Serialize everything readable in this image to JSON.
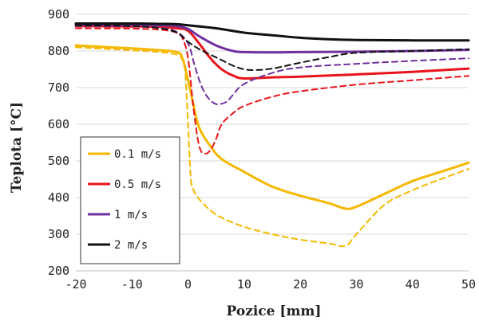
{
  "chart_data": {
    "type": "line",
    "title": "",
    "xlabel": "Pozice [mm]",
    "ylabel": "Teplota [°C]",
    "xlim": [
      -20,
      50
    ],
    "ylim": [
      200,
      900
    ],
    "xticks": [
      -20,
      -10,
      0,
      10,
      20,
      30,
      40,
      50
    ],
    "yticks": [
      200,
      300,
      400,
      500,
      600,
      700,
      800,
      900
    ],
    "xtick_labels": [
      "-20",
      "-10",
      "0",
      "10",
      "20",
      "30",
      "40",
      "50"
    ],
    "ytick_labels": [
      "200",
      "300",
      "400",
      "500",
      "600",
      "700",
      "800",
      "900"
    ],
    "grid": "horizontal",
    "legend_position": "lower-left",
    "legend": [
      "0.1 m/s",
      "0.5 m/s",
      "1 m/s",
      "2 m/s"
    ],
    "series": [
      {
        "name": "0.1 m/s",
        "color": "#f5b800",
        "style": "solid",
        "x": [
          -20,
          -10,
          -5,
          -2,
          -1,
          0,
          1,
          2,
          4,
          6,
          10,
          15,
          20,
          25,
          28,
          30,
          35,
          40,
          45,
          50
        ],
        "y": [
          815,
          807,
          802,
          797,
          780,
          720,
          650,
          590,
          540,
          505,
          470,
          430,
          405,
          385,
          370,
          375,
          410,
          445,
          470,
          495
        ]
      },
      {
        "name": "0.1 m/s",
        "color": "#f5b800",
        "style": "dashed",
        "x": [
          -20,
          -10,
          -5,
          -2,
          -1,
          -0.5,
          0,
          0.5,
          1,
          2,
          4,
          6,
          10,
          15,
          20,
          25,
          28,
          30,
          35,
          40,
          45,
          50
        ],
        "y": [
          810,
          802,
          797,
          790,
          775,
          740,
          600,
          450,
          420,
          395,
          365,
          345,
          320,
          300,
          285,
          275,
          268,
          300,
          380,
          420,
          450,
          478
        ]
      },
      {
        "name": "0.5 m/s",
        "color": "#e8141a",
        "style": "solid",
        "x": [
          -20,
          -10,
          -5,
          -2,
          0,
          2,
          4,
          6,
          8,
          10,
          15,
          20,
          30,
          40,
          50
        ],
        "y": [
          868,
          867,
          866,
          862,
          855,
          820,
          780,
          750,
          733,
          725,
          728,
          730,
          736,
          743,
          752
        ]
      },
      {
        "name": "0.5 m/s",
        "color": "#e8141a",
        "style": "dashed",
        "x": [
          -20,
          -10,
          -5,
          -2,
          -1,
          0,
          1,
          2,
          3,
          4,
          5,
          6,
          8,
          10,
          15,
          20,
          30,
          40,
          50
        ],
        "y": [
          862,
          861,
          858,
          850,
          835,
          780,
          640,
          540,
          520,
          530,
          560,
          600,
          630,
          650,
          675,
          690,
          708,
          720,
          732
        ]
      },
      {
        "name": "1 m/s",
        "color": "#7030a0",
        "style": "solid",
        "x": [
          -20,
          -10,
          -5,
          -2,
          0,
          2,
          5,
          8,
          10,
          15,
          20,
          30,
          40,
          50
        ],
        "y": [
          872,
          871,
          870,
          868,
          860,
          840,
          815,
          800,
          797,
          796,
          797,
          798,
          800,
          803
        ]
      },
      {
        "name": "1 m/s",
        "color": "#7030a0",
        "style": "dashed",
        "x": [
          -20,
          -10,
          -5,
          -2,
          0,
          1,
          2,
          3,
          4,
          5,
          6,
          7,
          8,
          10,
          15,
          20,
          30,
          40,
          50
        ],
        "y": [
          868,
          867,
          863,
          852,
          820,
          770,
          720,
          685,
          665,
          655,
          656,
          663,
          680,
          710,
          740,
          755,
          765,
          773,
          780
        ]
      },
      {
        "name": "2 m/s",
        "color": "#111111",
        "style": "solid",
        "x": [
          -20,
          -10,
          -5,
          -2,
          0,
          5,
          10,
          15,
          20,
          25,
          30,
          40,
          50
        ],
        "y": [
          875,
          875,
          874,
          873,
          870,
          862,
          850,
          843,
          836,
          832,
          830,
          829,
          829
        ]
      },
      {
        "name": "2 m/s",
        "color": "#111111",
        "style": "dashed",
        "x": [
          -20,
          -10,
          -5,
          -2,
          0,
          2,
          4,
          6,
          8,
          10,
          12,
          15,
          20,
          25,
          30,
          40,
          50
        ],
        "y": [
          870,
          868,
          862,
          850,
          825,
          805,
          790,
          775,
          760,
          750,
          748,
          752,
          768,
          783,
          795,
          800,
          805
        ]
      }
    ]
  }
}
